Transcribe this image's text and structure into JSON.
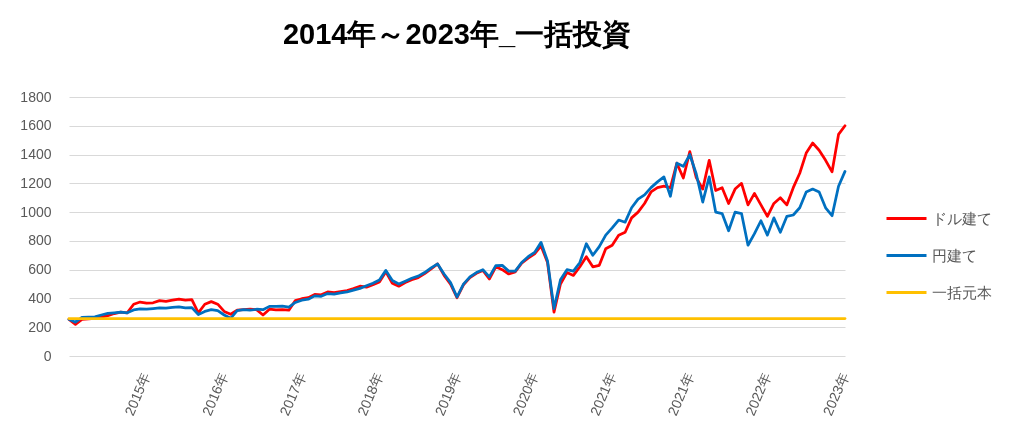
{
  "chart_data": {
    "type": "line",
    "title": "2014年～2023年_一括投資",
    "categories": [
      null,
      null,
      null,
      null,
      null,
      null,
      null,
      null,
      null,
      null,
      null,
      null,
      "2015年",
      null,
      null,
      null,
      null,
      null,
      null,
      null,
      null,
      null,
      null,
      null,
      "2016年",
      null,
      null,
      null,
      null,
      null,
      null,
      null,
      null,
      null,
      null,
      null,
      "2017年",
      null,
      null,
      null,
      null,
      null,
      null,
      null,
      null,
      null,
      null,
      null,
      "2018年",
      null,
      null,
      null,
      null,
      null,
      null,
      null,
      null,
      null,
      null,
      null,
      "2019年",
      null,
      null,
      null,
      null,
      null,
      null,
      null,
      null,
      null,
      null,
      null,
      "2020年",
      null,
      null,
      null,
      null,
      null,
      null,
      null,
      null,
      null,
      null,
      null,
      "2021年",
      null,
      null,
      null,
      null,
      null,
      null,
      null,
      null,
      null,
      null,
      null,
      "2021年",
      null,
      null,
      null,
      null,
      null,
      null,
      null,
      null,
      null,
      null,
      null,
      "2022年",
      null,
      null,
      null,
      null,
      null,
      null,
      null,
      null,
      null,
      null,
      null,
      "2023年"
    ],
    "series": [
      {
        "name": "ドル建て",
        "color": "#ff0000",
        "values": [
          255,
          220,
          255,
          258,
          262,
          270,
          280,
          295,
          305,
          300,
          360,
          375,
          368,
          370,
          385,
          380,
          388,
          395,
          388,
          392,
          300,
          360,
          378,
          360,
          310,
          290,
          318,
          322,
          325,
          322,
          285,
          325,
          320,
          322,
          318,
          385,
          398,
          405,
          428,
          425,
          445,
          440,
          448,
          455,
          468,
          485,
          478,
          495,
          515,
          585,
          505,
          485,
          510,
          530,
          545,
          572,
          605,
          640,
          560,
          500,
          405,
          495,
          545,
          575,
          595,
          535,
          620,
          600,
          570,
          585,
          645,
          680,
          710,
          765,
          650,
          305,
          500,
          580,
          560,
          620,
          690,
          620,
          630,
          745,
          770,
          840,
          860,
          960,
          1000,
          1060,
          1140,
          1170,
          1180,
          1170,
          1340,
          1237,
          1420,
          1240,
          1160,
          1360,
          1150,
          1170,
          1060,
          1160,
          1200,
          1050,
          1130,
          1050,
          970,
          1060,
          1100,
          1050,
          1170,
          1270,
          1410,
          1480,
          1430,
          1360,
          1280,
          1540,
          1600
        ]
      },
      {
        "name": "円建て",
        "color": "#0070c0",
        "values": [
          255,
          235,
          268,
          270,
          272,
          285,
          296,
          300,
          305,
          300,
          320,
          328,
          325,
          330,
          335,
          333,
          338,
          342,
          335,
          336,
          288,
          310,
          322,
          315,
          285,
          262,
          315,
          322,
          318,
          325,
          322,
          345,
          345,
          347,
          340,
          372,
          388,
          395,
          418,
          415,
          434,
          430,
          438,
          445,
          458,
          470,
          488,
          505,
          528,
          595,
          525,
          500,
          520,
          540,
          555,
          580,
          612,
          640,
          570,
          510,
          410,
          500,
          550,
          580,
          600,
          550,
          628,
          630,
          590,
          590,
          650,
          690,
          720,
          790,
          660,
          330,
          530,
          600,
          590,
          650,
          780,
          700,
          760,
          840,
          890,
          945,
          930,
          1030,
          1090,
          1120,
          1170,
          1210,
          1245,
          1110,
          1340,
          1318,
          1400,
          1265,
          1070,
          1245,
          1000,
          990,
          870,
          1000,
          990,
          770,
          850,
          940,
          840,
          960,
          860,
          970,
          980,
          1030,
          1140,
          1160,
          1140,
          1030,
          975,
          1180,
          1283
        ]
      },
      {
        "name": "一括元本",
        "color": "#ffc000",
        "values": [
          260,
          260,
          260,
          260,
          260,
          260,
          260,
          260,
          260,
          260,
          260,
          260,
          260,
          260,
          260,
          260,
          260,
          260,
          260,
          260,
          260,
          260,
          260,
          260,
          260,
          260,
          260,
          260,
          260,
          260,
          260,
          260,
          260,
          260,
          260,
          260,
          260,
          260,
          260,
          260,
          260,
          260,
          260,
          260,
          260,
          260,
          260,
          260,
          260,
          260,
          260,
          260,
          260,
          260,
          260,
          260,
          260,
          260,
          260,
          260,
          260,
          260,
          260,
          260,
          260,
          260,
          260,
          260,
          260,
          260,
          260,
          260,
          260,
          260,
          260,
          260,
          260,
          260,
          260,
          260,
          260,
          260,
          260,
          260,
          260,
          260,
          260,
          260,
          260,
          260,
          260,
          260,
          260,
          260,
          260,
          260,
          260,
          260,
          260,
          260,
          260,
          260,
          260,
          260,
          260,
          260,
          260,
          260,
          260,
          260,
          260,
          260,
          260,
          260,
          260,
          260,
          260,
          260,
          260,
          260,
          260
        ]
      }
    ],
    "ylim": [
      0,
      1800
    ],
    "yticks": [
      0,
      200,
      400,
      600,
      800,
      1000,
      1200,
      1400,
      1600,
      1800
    ],
    "grid": "y",
    "legend": "right"
  }
}
